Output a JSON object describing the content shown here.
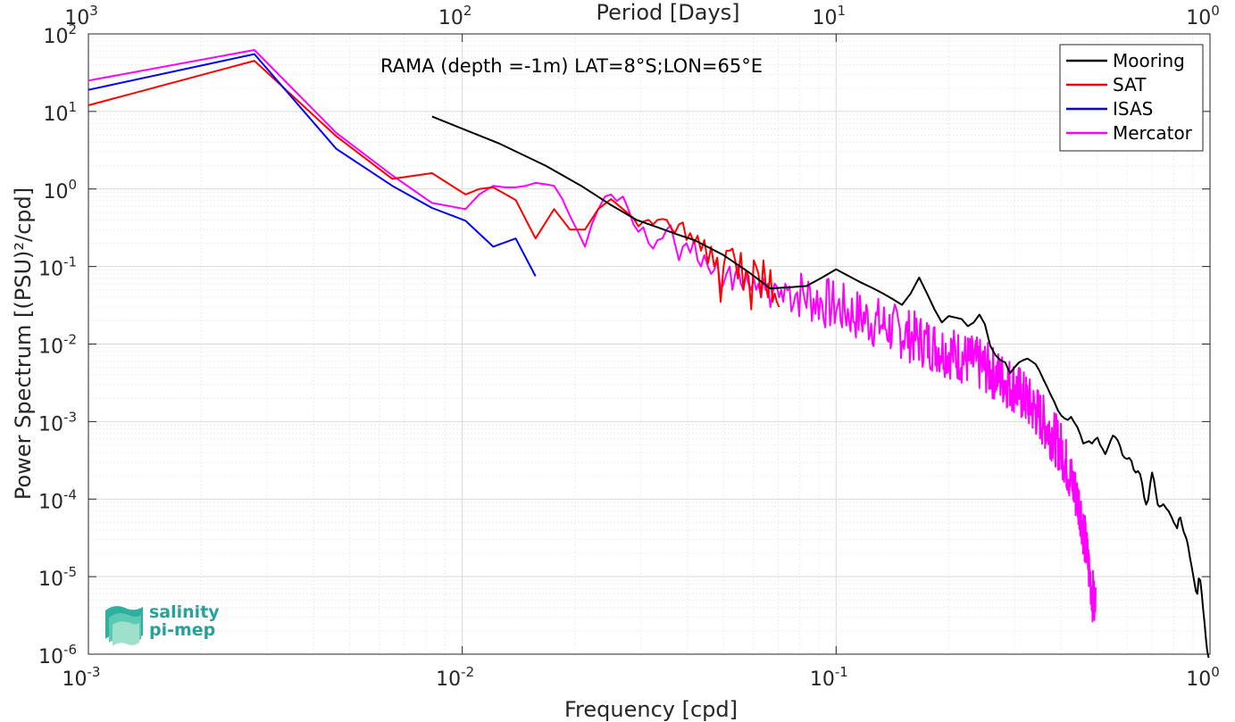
{
  "logo": {
    "line1": "salinity",
    "line2": "pi-mep"
  },
  "chart_data": {
    "type": "line",
    "title": "RAMA (depth =-1m) LAT=8°S;LON=65°E",
    "xlabel": "Frequency [cpd]",
    "ylabel": "Power Spectrum [(PSU)²/cpd]",
    "x2label": "Period [Days]",
    "xscale": "log",
    "yscale": "log",
    "xlim": [
      0.001,
      1
    ],
    "ylim": [
      1e-06,
      100
    ],
    "grid": true,
    "legend_position": "top-right",
    "x_ticks": [
      {
        "value": 0.001,
        "base": "10",
        "exp": "-3"
      },
      {
        "value": 0.01,
        "base": "10",
        "exp": "-2"
      },
      {
        "value": 0.1,
        "base": "10",
        "exp": "-1"
      },
      {
        "value": 1,
        "base": "10",
        "exp": "0"
      }
    ],
    "x2_ticks": [
      {
        "value": 0.001,
        "base": "10",
        "exp": "3"
      },
      {
        "value": 0.01,
        "base": "10",
        "exp": "2"
      },
      {
        "value": 0.1,
        "base": "10",
        "exp": "1"
      },
      {
        "value": 1,
        "base": "10",
        "exp": "0"
      }
    ],
    "y_ticks": [
      {
        "value": 100,
        "base": "10",
        "exp": "2"
      },
      {
        "value": 10,
        "base": "10",
        "exp": "1"
      },
      {
        "value": 1,
        "base": "10",
        "exp": "0"
      },
      {
        "value": 0.1,
        "base": "10",
        "exp": "-1"
      },
      {
        "value": 0.01,
        "base": "10",
        "exp": "-2"
      },
      {
        "value": 0.001,
        "base": "10",
        "exp": "-3"
      },
      {
        "value": 0.0001,
        "base": "10",
        "exp": "-4"
      },
      {
        "value": 1e-05,
        "base": "10",
        "exp": "-5"
      },
      {
        "value": 1e-06,
        "base": "10",
        "exp": "-6"
      }
    ],
    "series": [
      {
        "name": "Mooring",
        "color": "#000000",
        "points": [
          [
            0.0083,
            8.6
          ],
          [
            0.0125,
            3.9
          ],
          [
            0.0167,
            2.0
          ],
          [
            0.0208,
            1.1
          ],
          [
            0.025,
            0.62
          ],
          [
            0.0292,
            0.4
          ],
          [
            0.0333,
            0.32
          ],
          [
            0.0375,
            0.26
          ],
          [
            0.0417,
            0.22
          ],
          [
            0.05,
            0.14
          ],
          [
            0.0583,
            0.085
          ],
          [
            0.0667,
            0.052
          ],
          [
            0.075,
            0.054
          ],
          [
            0.0833,
            0.056
          ],
          [
            0.0917,
            0.072
          ],
          [
            0.1,
            0.092
          ],
          [
            0.1083,
            0.075
          ],
          [
            0.1167,
            0.062
          ],
          [
            0.125,
            0.053
          ],
          [
            0.1333,
            0.045
          ],
          [
            0.1417,
            0.038
          ],
          [
            0.15,
            0.032
          ],
          [
            0.1583,
            0.045
          ],
          [
            0.1667,
            0.072
          ],
          [
            0.175,
            0.045
          ],
          [
            0.1833,
            0.028
          ],
          [
            0.1917,
            0.019
          ],
          [
            0.2,
            0.023
          ],
          [
            0.2083,
            0.022
          ],
          [
            0.2167,
            0.021
          ],
          [
            0.225,
            0.017
          ],
          [
            0.2333,
            0.019
          ],
          [
            0.2417,
            0.024
          ],
          [
            0.25,
            0.018
          ],
          [
            0.2583,
            0.0095
          ],
          [
            0.2667,
            0.0072
          ],
          [
            0.275,
            0.0062
          ],
          [
            0.2833,
            0.0058
          ],
          [
            0.2917,
            0.0042
          ],
          [
            0.3,
            0.005
          ],
          [
            0.3083,
            0.0058
          ],
          [
            0.3167,
            0.0062
          ],
          [
            0.325,
            0.0065
          ],
          [
            0.3333,
            0.006
          ],
          [
            0.3417,
            0.0055
          ],
          [
            0.35,
            0.0045
          ],
          [
            0.3583,
            0.0035
          ],
          [
            0.3667,
            0.0028
          ],
          [
            0.375,
            0.0022
          ],
          [
            0.3833,
            0.0018
          ],
          [
            0.3917,
            0.0014
          ],
          [
            0.4,
            0.0012
          ],
          [
            0.4083,
            0.0011
          ],
          [
            0.4167,
            0.00105
          ],
          [
            0.425,
            0.00115
          ],
          [
            0.4333,
            0.00098
          ],
          [
            0.4417,
            0.00085
          ],
          [
            0.45,
            0.00068
          ],
          [
            0.4583,
            0.00052
          ],
          [
            0.4667,
            0.00054
          ],
          [
            0.475,
            0.00056
          ],
          [
            0.4833,
            0.00052
          ],
          [
            0.4917,
            0.00058
          ],
          [
            0.5,
            0.00062
          ],
          [
            0.5083,
            0.0005
          ],
          [
            0.5167,
            0.00044
          ],
          [
            0.525,
            0.00038
          ],
          [
            0.5333,
            0.00046
          ],
          [
            0.5417,
            0.00056
          ],
          [
            0.55,
            0.00066
          ],
          [
            0.5583,
            0.00063
          ],
          [
            0.5667,
            0.00057
          ],
          [
            0.575,
            0.00048
          ],
          [
            0.5833,
            0.00037
          ],
          [
            0.5917,
            0.00034
          ],
          [
            0.6,
            0.00033
          ],
          [
            0.6083,
            0.00034
          ],
          [
            0.6167,
            0.00031
          ],
          [
            0.625,
            0.00024
          ],
          [
            0.6333,
            0.00022
          ],
          [
            0.6417,
            0.00023
          ],
          [
            0.65,
            0.00021
          ],
          [
            0.6583,
            0.00016
          ],
          [
            0.6667,
            0.000105
          ],
          [
            0.675,
            8.5e-05
          ],
          [
            0.6833,
            9.8e-05
          ],
          [
            0.6917,
            0.000155
          ],
          [
            0.7,
            0.00022
          ],
          [
            0.7083,
            0.000175
          ],
          [
            0.7167,
            0.00012
          ],
          [
            0.725,
            8.5e-05
          ],
          [
            0.7333,
            8e-05
          ],
          [
            0.7417,
            8.2e-05
          ],
          [
            0.75,
            8.6e-05
          ],
          [
            0.7583,
            8e-05
          ],
          [
            0.7667,
            7.4e-05
          ],
          [
            0.775,
            7e-05
          ],
          [
            0.7833,
            6.3e-05
          ],
          [
            0.7917,
            5.7e-05
          ],
          [
            0.8,
            5e-05
          ],
          [
            0.8083,
            4.6e-05
          ],
          [
            0.8167,
            4.2e-05
          ],
          [
            0.825,
            5.5e-05
          ],
          [
            0.8333,
            5.8e-05
          ],
          [
            0.8417,
            4.6e-05
          ],
          [
            0.85,
            3.8e-05
          ],
          [
            0.8583,
            3.4e-05
          ],
          [
            0.8667,
            3e-05
          ],
          [
            0.875,
            2.4e-05
          ],
          [
            0.8833,
            1.8e-05
          ],
          [
            0.8917,
            1.4e-05
          ],
          [
            0.9,
            1.1e-05
          ],
          [
            0.9083,
            8.5e-06
          ],
          [
            0.9167,
            6.5e-06
          ],
          [
            0.925,
            6e-06
          ],
          [
            0.9333,
            9.5e-06
          ],
          [
            0.9417,
            9e-06
          ],
          [
            0.95,
            6.2e-06
          ],
          [
            0.9583,
            3.8e-06
          ],
          [
            0.9667,
            2.6e-06
          ],
          [
            0.975,
            1.6e-06
          ],
          [
            0.9833,
            1.1e-06
          ],
          [
            0.9917,
            9e-07
          ]
        ]
      },
      {
        "name": "SAT",
        "color": "#ff0000",
        "points": [
          [
            0.001,
            12
          ],
          [
            0.00278,
            45
          ],
          [
            0.0046,
            4.8
          ],
          [
            0.0065,
            1.35
          ],
          [
            0.0083,
            1.6
          ],
          [
            0.0102,
            0.85
          ],
          [
            0.0111,
            1.0
          ],
          [
            0.0121,
            1.05
          ],
          [
            0.0139,
            0.72
          ],
          [
            0.0157,
            0.23
          ],
          [
            0.0176,
            0.55
          ],
          [
            0.0194,
            0.3
          ],
          [
            0.0213,
            0.3
          ],
          [
            0.0231,
            0.55
          ],
          [
            0.025,
            0.74
          ],
          [
            0.0269,
            0.55
          ],
          [
            0.0287,
            0.42
          ],
          [
            0.0296,
            0.33
          ],
          [
            0.0305,
            0.38
          ],
          [
            0.0315,
            0.4
          ],
          [
            0.0324,
            0.35
          ],
          [
            0.0333,
            0.4
          ],
          [
            0.0343,
            0.41
          ],
          [
            0.0352,
            0.4
          ],
          [
            0.0361,
            0.32
          ],
          [
            0.037,
            0.27
          ],
          [
            0.038,
            0.35
          ],
          [
            0.0389,
            0.37
          ],
          [
            0.0398,
            0.22
          ],
          [
            0.0407,
            0.27
          ],
          [
            0.0417,
            0.2
          ],
          [
            0.0426,
            0.25
          ],
          [
            0.0435,
            0.16
          ],
          [
            0.0444,
            0.22
          ],
          [
            0.0454,
            0.11
          ],
          [
            0.0463,
            0.18
          ],
          [
            0.0472,
            0.1
          ],
          [
            0.0481,
            0.13
          ],
          [
            0.0491,
            0.035
          ],
          [
            0.05,
            0.1
          ],
          [
            0.0509,
            0.16
          ],
          [
            0.0519,
            0.16
          ],
          [
            0.0528,
            0.17
          ],
          [
            0.0537,
            0.12
          ],
          [
            0.0546,
            0.07
          ],
          [
            0.0556,
            0.15
          ],
          [
            0.0565,
            0.05
          ],
          [
            0.0574,
            0.09
          ],
          [
            0.0583,
            0.075
          ],
          [
            0.0593,
            0.028
          ],
          [
            0.0602,
            0.12
          ],
          [
            0.0611,
            0.1
          ],
          [
            0.062,
            0.08
          ],
          [
            0.063,
            0.04
          ],
          [
            0.0639,
            0.12
          ],
          [
            0.0648,
            0.06
          ],
          [
            0.0657,
            0.04
          ],
          [
            0.0667,
            0.09
          ],
          [
            0.0676,
            0.035
          ],
          [
            0.0685,
            0.045
          ],
          [
            0.0694,
            0.035
          ],
          [
            0.0704,
            0.03
          ]
        ]
      },
      {
        "name": "ISAS",
        "color": "#0000ff",
        "points": [
          [
            0.001,
            19
          ],
          [
            0.00278,
            55
          ],
          [
            0.0046,
            3.3
          ],
          [
            0.0065,
            1.1
          ],
          [
            0.0083,
            0.57
          ],
          [
            0.0102,
            0.39
          ],
          [
            0.0121,
            0.18
          ],
          [
            0.0139,
            0.23
          ],
          [
            0.0157,
            0.075
          ]
        ]
      },
      {
        "name": "Mercator",
        "color": "#ff00ff",
        "formula_note": "",
        "points": [
          [
            0.001,
            25
          ],
          [
            0.00278,
            62
          ],
          [
            0.0046,
            5.3
          ],
          [
            0.0065,
            1.5
          ],
          [
            0.0083,
            0.66
          ],
          [
            0.0102,
            0.55
          ],
          [
            0.0111,
            0.85
          ],
          [
            0.0121,
            1.1
          ],
          [
            0.013,
            1.05
          ],
          [
            0.0139,
            1.05
          ],
          [
            0.0148,
            1.1
          ],
          [
            0.0157,
            1.2
          ],
          [
            0.0167,
            1.15
          ],
          [
            0.0176,
            1.1
          ],
          [
            0.0185,
            0.75
          ],
          [
            0.0194,
            0.45
          ],
          [
            0.0204,
            0.28
          ],
          [
            0.0213,
            0.18
          ],
          [
            0.0222,
            0.35
          ],
          [
            0.0231,
            0.55
          ],
          [
            0.0241,
            0.8
          ],
          [
            0.025,
            0.85
          ],
          [
            0.0259,
            0.7
          ],
          [
            0.0269,
            0.8
          ],
          [
            0.0278,
            0.55
          ],
          [
            0.0287,
            0.35
          ],
          [
            0.0296,
            0.28
          ],
          [
            0.0305,
            0.32
          ],
          [
            0.0315,
            0.2
          ],
          [
            0.0324,
            0.17
          ],
          [
            0.0333,
            0.22
          ],
          [
            0.0343,
            0.23
          ],
          [
            0.0352,
            0.3
          ],
          [
            0.0361,
            0.34
          ],
          [
            0.037,
            0.2
          ],
          [
            0.038,
            0.12
          ],
          [
            0.0389,
            0.18
          ],
          [
            0.0398,
            0.2
          ],
          [
            0.0407,
            0.15
          ],
          [
            0.0417,
            0.22
          ],
          [
            0.0426,
            0.12
          ],
          [
            0.0435,
            0.1
          ],
          [
            0.0444,
            0.14
          ],
          [
            0.0454,
            0.1
          ],
          [
            0.0463,
            0.08
          ],
          [
            0.0472,
            0.09
          ],
          [
            0.0481,
            0.12
          ],
          [
            0.0491,
            0.05
          ],
          [
            0.05,
            0.06
          ],
          [
            0.0509,
            0.08
          ],
          [
            0.0519,
            0.1
          ],
          [
            0.0528,
            0.05
          ],
          [
            0.0537,
            0.08
          ],
          [
            0.0546,
            0.1
          ],
          [
            0.0556,
            0.06
          ],
          [
            0.0565,
            0.05
          ],
          [
            0.0574,
            0.08
          ],
          [
            0.0583,
            0.06
          ],
          [
            0.0593,
            0.05
          ],
          [
            0.0602,
            0.07
          ],
          [
            0.0611,
            0.05
          ],
          [
            0.062,
            0.06
          ],
          [
            0.063,
            0.04
          ],
          [
            0.0639,
            0.07
          ],
          [
            0.0648,
            0.05
          ],
          [
            0.0657,
            0.06
          ],
          [
            0.0667,
            0.03
          ],
          [
            0.0676,
            0.045
          ],
          [
            0.0685,
            0.06
          ],
          [
            0.0694,
            0.055
          ],
          [
            0.0704,
            0.04
          ],
          [
            0.0713,
            0.05
          ],
          [
            0.0722,
            0.035
          ],
          [
            0.0731,
            0.06
          ]
        ],
        "tail_trend": [
          [
            0.075,
            0.05
          ],
          [
            0.1,
            0.03
          ],
          [
            0.15,
            0.014
          ],
          [
            0.2,
            0.008
          ],
          [
            0.25,
            0.005
          ],
          [
            0.3,
            0.0028
          ],
          [
            0.35,
            0.0012
          ],
          [
            0.4,
            0.00045
          ],
          [
            0.45,
            7.5e-05
          ],
          [
            0.49,
            4.2e-06
          ]
        ]
      }
    ]
  }
}
